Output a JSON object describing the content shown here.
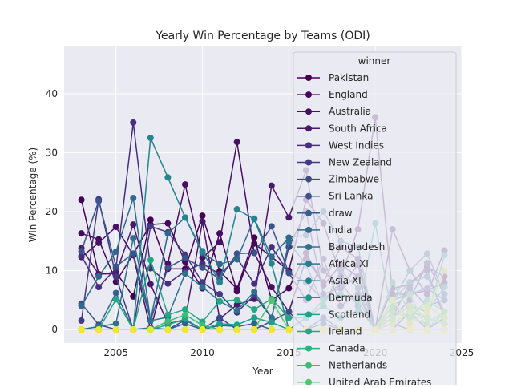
{
  "chart_data": {
    "type": "line",
    "title": "Yearly Win Percentage by Teams (ODI)",
    "xlabel": "Year",
    "ylabel": "Win Percentage (%)",
    "xlim": [
      2002.0,
      2025.0
    ],
    "ylim": [
      -2.3,
      48.0
    ],
    "x_ticks": [
      2005,
      2010,
      2015,
      2020,
      2025
    ],
    "y_ticks": [
      0,
      10,
      20,
      30,
      40
    ],
    "grid": true,
    "legend_title": "winner",
    "legend_position": "right, overlapping plot and extending below",
    "x": [
      2003,
      2004,
      2005,
      2006,
      2007,
      2008,
      2009,
      2010,
      2011,
      2012,
      2013,
      2014,
      2015,
      2016,
      2017,
      2018,
      2019,
      2020,
      2021,
      2022,
      2023,
      2024
    ],
    "series": [
      {
        "name": "Pakistan",
        "color": "#440154",
        "values": [
          22.0,
          9.4,
          9.7,
          5.6,
          18.6,
          10.3,
          10.3,
          19.3,
          9.9,
          6.9,
          15.6,
          5.0,
          7.0,
          13.0,
          7.5,
          11.0,
          9.0,
          0.0,
          7.0,
          7.6,
          10.6,
          9.0
        ]
      },
      {
        "name": "England",
        "color": "#46085c",
        "values": [
          16.3,
          15.3,
          8.1,
          12.8,
          17.8,
          18.0,
          11.5,
          7.0,
          16.3,
          6.5,
          14.6,
          12.3,
          10.0,
          22.0,
          18.0,
          9.0,
          17.0,
          36.0,
          6.0,
          6.0,
          6.6,
          8.0
        ]
      },
      {
        "name": "Australia",
        "color": "#471063",
        "values": [
          12.3,
          14.7,
          17.4,
          12.6,
          0.0,
          11.2,
          24.6,
          12.2,
          14.8,
          31.8,
          13.0,
          7.2,
          3.0,
          12.0,
          8.0,
          14.0,
          12.0,
          0.0,
          17.0,
          10.0,
          6.0,
          13.4
        ]
      },
      {
        "name": "South Africa",
        "color": "#48186a",
        "values": [
          13.8,
          9.4,
          9.5,
          17.8,
          7.7,
          1.0,
          1.6,
          18.3,
          1.8,
          4.2,
          5.2,
          24.4,
          19.0,
          27.0,
          10.0,
          7.0,
          11.0,
          0.0,
          2.0,
          8.0,
          10.0,
          2.0
        ]
      },
      {
        "name": "West Indies",
        "color": "#472f7d",
        "values": [
          12.5,
          7.2,
          10.4,
          35.1,
          10.4,
          7.8,
          9.9,
          11.2,
          9.4,
          12.1,
          7.8,
          14.0,
          9.6,
          5.0,
          12.0,
          4.0,
          6.0,
          0.0,
          2.0,
          5.0,
          11.3,
          6.0
        ]
      },
      {
        "name": "New Zealand",
        "color": "#443983",
        "values": [
          1.5,
          22.1,
          9.0,
          0.0,
          17.5,
          16.5,
          12.7,
          8.0,
          6.0,
          2.9,
          5.8,
          2.0,
          14.0,
          20.0,
          6.0,
          7.0,
          9.0,
          0.0,
          3.0,
          7.0,
          4.0,
          5.0
        ]
      },
      {
        "name": "Zimbabwe",
        "color": "#3e4989",
        "values": [
          4.4,
          0.8,
          0.0,
          0.0,
          0.0,
          0.0,
          1.6,
          0.0,
          2.0,
          0.0,
          0.0,
          1.4,
          3.0,
          0.0,
          2.0,
          0.0,
          0.0,
          0.0,
          0.0,
          3.0,
          0.0,
          2.0
        ]
      },
      {
        "name": "Sri Lanka",
        "color": "#3b528b",
        "values": [
          13.3,
          21.8,
          10.7,
          12.9,
          1.5,
          10.5,
          12.1,
          10.5,
          8.6,
          12.9,
          13.0,
          17.5,
          9.6,
          8.0,
          5.0,
          8.0,
          4.0,
          0.0,
          5.0,
          6.0,
          7.0,
          5.0
        ]
      },
      {
        "name": "draw",
        "color": "#355f8d",
        "values": [
          0.0,
          0.5,
          6.2,
          0.0,
          0.0,
          0.0,
          1.0,
          0.0,
          0.7,
          0.5,
          1.0,
          0.0,
          0.0,
          0.0,
          1.0,
          0.0,
          0.0,
          0.0,
          1.0,
          0.0,
          0.0,
          0.0
        ]
      },
      {
        "name": "India",
        "color": "#31688e",
        "values": [
          4.0,
          9.0,
          13.2,
          22.3,
          1.5,
          16.3,
          19.0,
          13.0,
          11.1,
          11.9,
          18.8,
          12.3,
          15.6,
          16.0,
          20.0,
          15.0,
          14.0,
          0.0,
          5.0,
          10.0,
          12.9,
          6.0
        ]
      },
      {
        "name": "Bangladesh",
        "color": "#2d718e",
        "values": [
          0.0,
          0.5,
          1.0,
          15.5,
          1.5,
          2.1,
          9.5,
          7.2,
          4.8,
          3.2,
          6.4,
          2.0,
          14.8,
          11.0,
          4.0,
          10.0,
          7.0,
          0.0,
          5.0,
          8.0,
          9.0,
          3.0
        ]
      },
      {
        "name": "Africa XI",
        "color": "#297b8e",
        "values": [
          0.0,
          0.0,
          0.0,
          0.0,
          0.3,
          0.0,
          0.0,
          0.0,
          0.0,
          0.0,
          0.0,
          0.0,
          0.0,
          0.0,
          0.0,
          0.0,
          0.0,
          0.0,
          0.0,
          0.0,
          0.0,
          0.0
        ]
      },
      {
        "name": "Asia XI",
        "color": "#25858e",
        "values": [
          0.0,
          0.0,
          0.0,
          0.0,
          32.5,
          25.8,
          19.0,
          13.3,
          8.0,
          20.4,
          18.7,
          11.2,
          0.0,
          0.0,
          0.0,
          0.0,
          0.0,
          0.0,
          0.0,
          0.0,
          0.0,
          0.0
        ]
      },
      {
        "name": "Bermuda",
        "color": "#1f988b",
        "values": [
          0.0,
          0.0,
          0.0,
          0.0,
          0.0,
          0.0,
          0.0,
          0.0,
          0.0,
          0.0,
          0.0,
          0.0,
          0.0,
          0.0,
          0.0,
          0.0,
          0.0,
          0.0,
          0.0,
          0.0,
          0.0,
          0.0
        ]
      },
      {
        "name": "Scotland",
        "color": "#1fa188",
        "values": [
          0.0,
          0.0,
          0.0,
          0.0,
          0.0,
          0.8,
          1.8,
          0.0,
          1.0,
          0.8,
          2.0,
          1.2,
          0.0,
          2.0,
          4.0,
          2.0,
          3.0,
          18.0,
          2.0,
          4.0,
          3.0,
          7.2
        ]
      },
      {
        "name": "Ireland",
        "color": "#22a884",
        "values": [
          0.0,
          0.0,
          5.1,
          0.0,
          11.8,
          2.5,
          3.4,
          1.3,
          4.8,
          5.0,
          3.4,
          5.2,
          2.0,
          2.0,
          5.0,
          6.0,
          5.0,
          0.0,
          8.0,
          3.0,
          2.0,
          12.6
        ]
      },
      {
        "name": "Canada",
        "color": "#2db27d",
        "values": [
          0.0,
          0.0,
          0.0,
          0.0,
          0.0,
          0.0,
          0.0,
          0.0,
          0.0,
          0.0,
          0.0,
          0.0,
          0.0,
          0.0,
          0.0,
          0.0,
          0.0,
          0.0,
          0.0,
          0.0,
          0.0,
          0.0
        ]
      },
      {
        "name": "Netherlands",
        "color": "#3dbc74",
        "values": [
          0.0,
          0.0,
          0.0,
          0.0,
          0.0,
          1.4,
          2.5,
          0.7,
          0.0,
          0.0,
          0.0,
          0.0,
          0.0,
          0.0,
          0.0,
          0.0,
          0.0,
          0.0,
          4.0,
          2.0,
          5.0,
          3.0
        ]
      },
      {
        "name": "United Arab Emirates",
        "color": "#51c569",
        "values": [
          0.0,
          0.0,
          0.0,
          0.0,
          0.0,
          0.0,
          0.0,
          0.0,
          0.0,
          0.0,
          0.0,
          4.9,
          0.0,
          0.0,
          0.0,
          0.0,
          0.0,
          0.0,
          4.0,
          6.0,
          0.0,
          3.0
        ]
      },
      {
        "name": "",
        "color": "#6ccd5a",
        "values": [
          0.0,
          0.0,
          0.0,
          0.0,
          0.0,
          0.0,
          0.0,
          0.0,
          0.0,
          0.0,
          0.0,
          0.0,
          0.0,
          0.0,
          0.0,
          0.0,
          0.0,
          0.0,
          3.0,
          2.0,
          1.0,
          3.0
        ]
      },
      {
        "name": "",
        "color": "#89d548",
        "values": [
          0.0,
          0.0,
          0.0,
          0.0,
          0.0,
          0.0,
          0.0,
          0.0,
          0.0,
          0.0,
          0.0,
          0.0,
          0.0,
          0.0,
          0.0,
          0.0,
          0.0,
          0.0,
          2.0,
          4.0,
          2.0,
          1.0
        ]
      },
      {
        "name": "",
        "color": "#a8db34",
        "values": [
          0.0,
          0.0,
          0.0,
          0.0,
          0.0,
          0.0,
          0.0,
          0.0,
          0.0,
          0.0,
          0.0,
          0.0,
          0.0,
          0.0,
          0.0,
          0.0,
          0.0,
          0.0,
          1.0,
          3.0,
          4.0,
          2.0
        ]
      },
      {
        "name": "",
        "color": "#c8e020",
        "values": [
          0.0,
          0.0,
          0.0,
          0.0,
          0.0,
          0.0,
          0.0,
          0.0,
          0.0,
          0.0,
          0.0,
          0.0,
          0.0,
          0.0,
          0.0,
          0.0,
          0.0,
          0.0,
          5.0,
          1.0,
          3.0,
          10.0
        ]
      },
      {
        "name": "",
        "color": "#fde725",
        "values": [
          0.0,
          0.0,
          0.0,
          0.0,
          0.0,
          0.0,
          0.0,
          0.0,
          0.0,
          0.0,
          0.0,
          0.0,
          0.0,
          0.0,
          0.0,
          0.0,
          0.0,
          0.0,
          0.0,
          0.0,
          0.0,
          0.0
        ]
      }
    ]
  }
}
